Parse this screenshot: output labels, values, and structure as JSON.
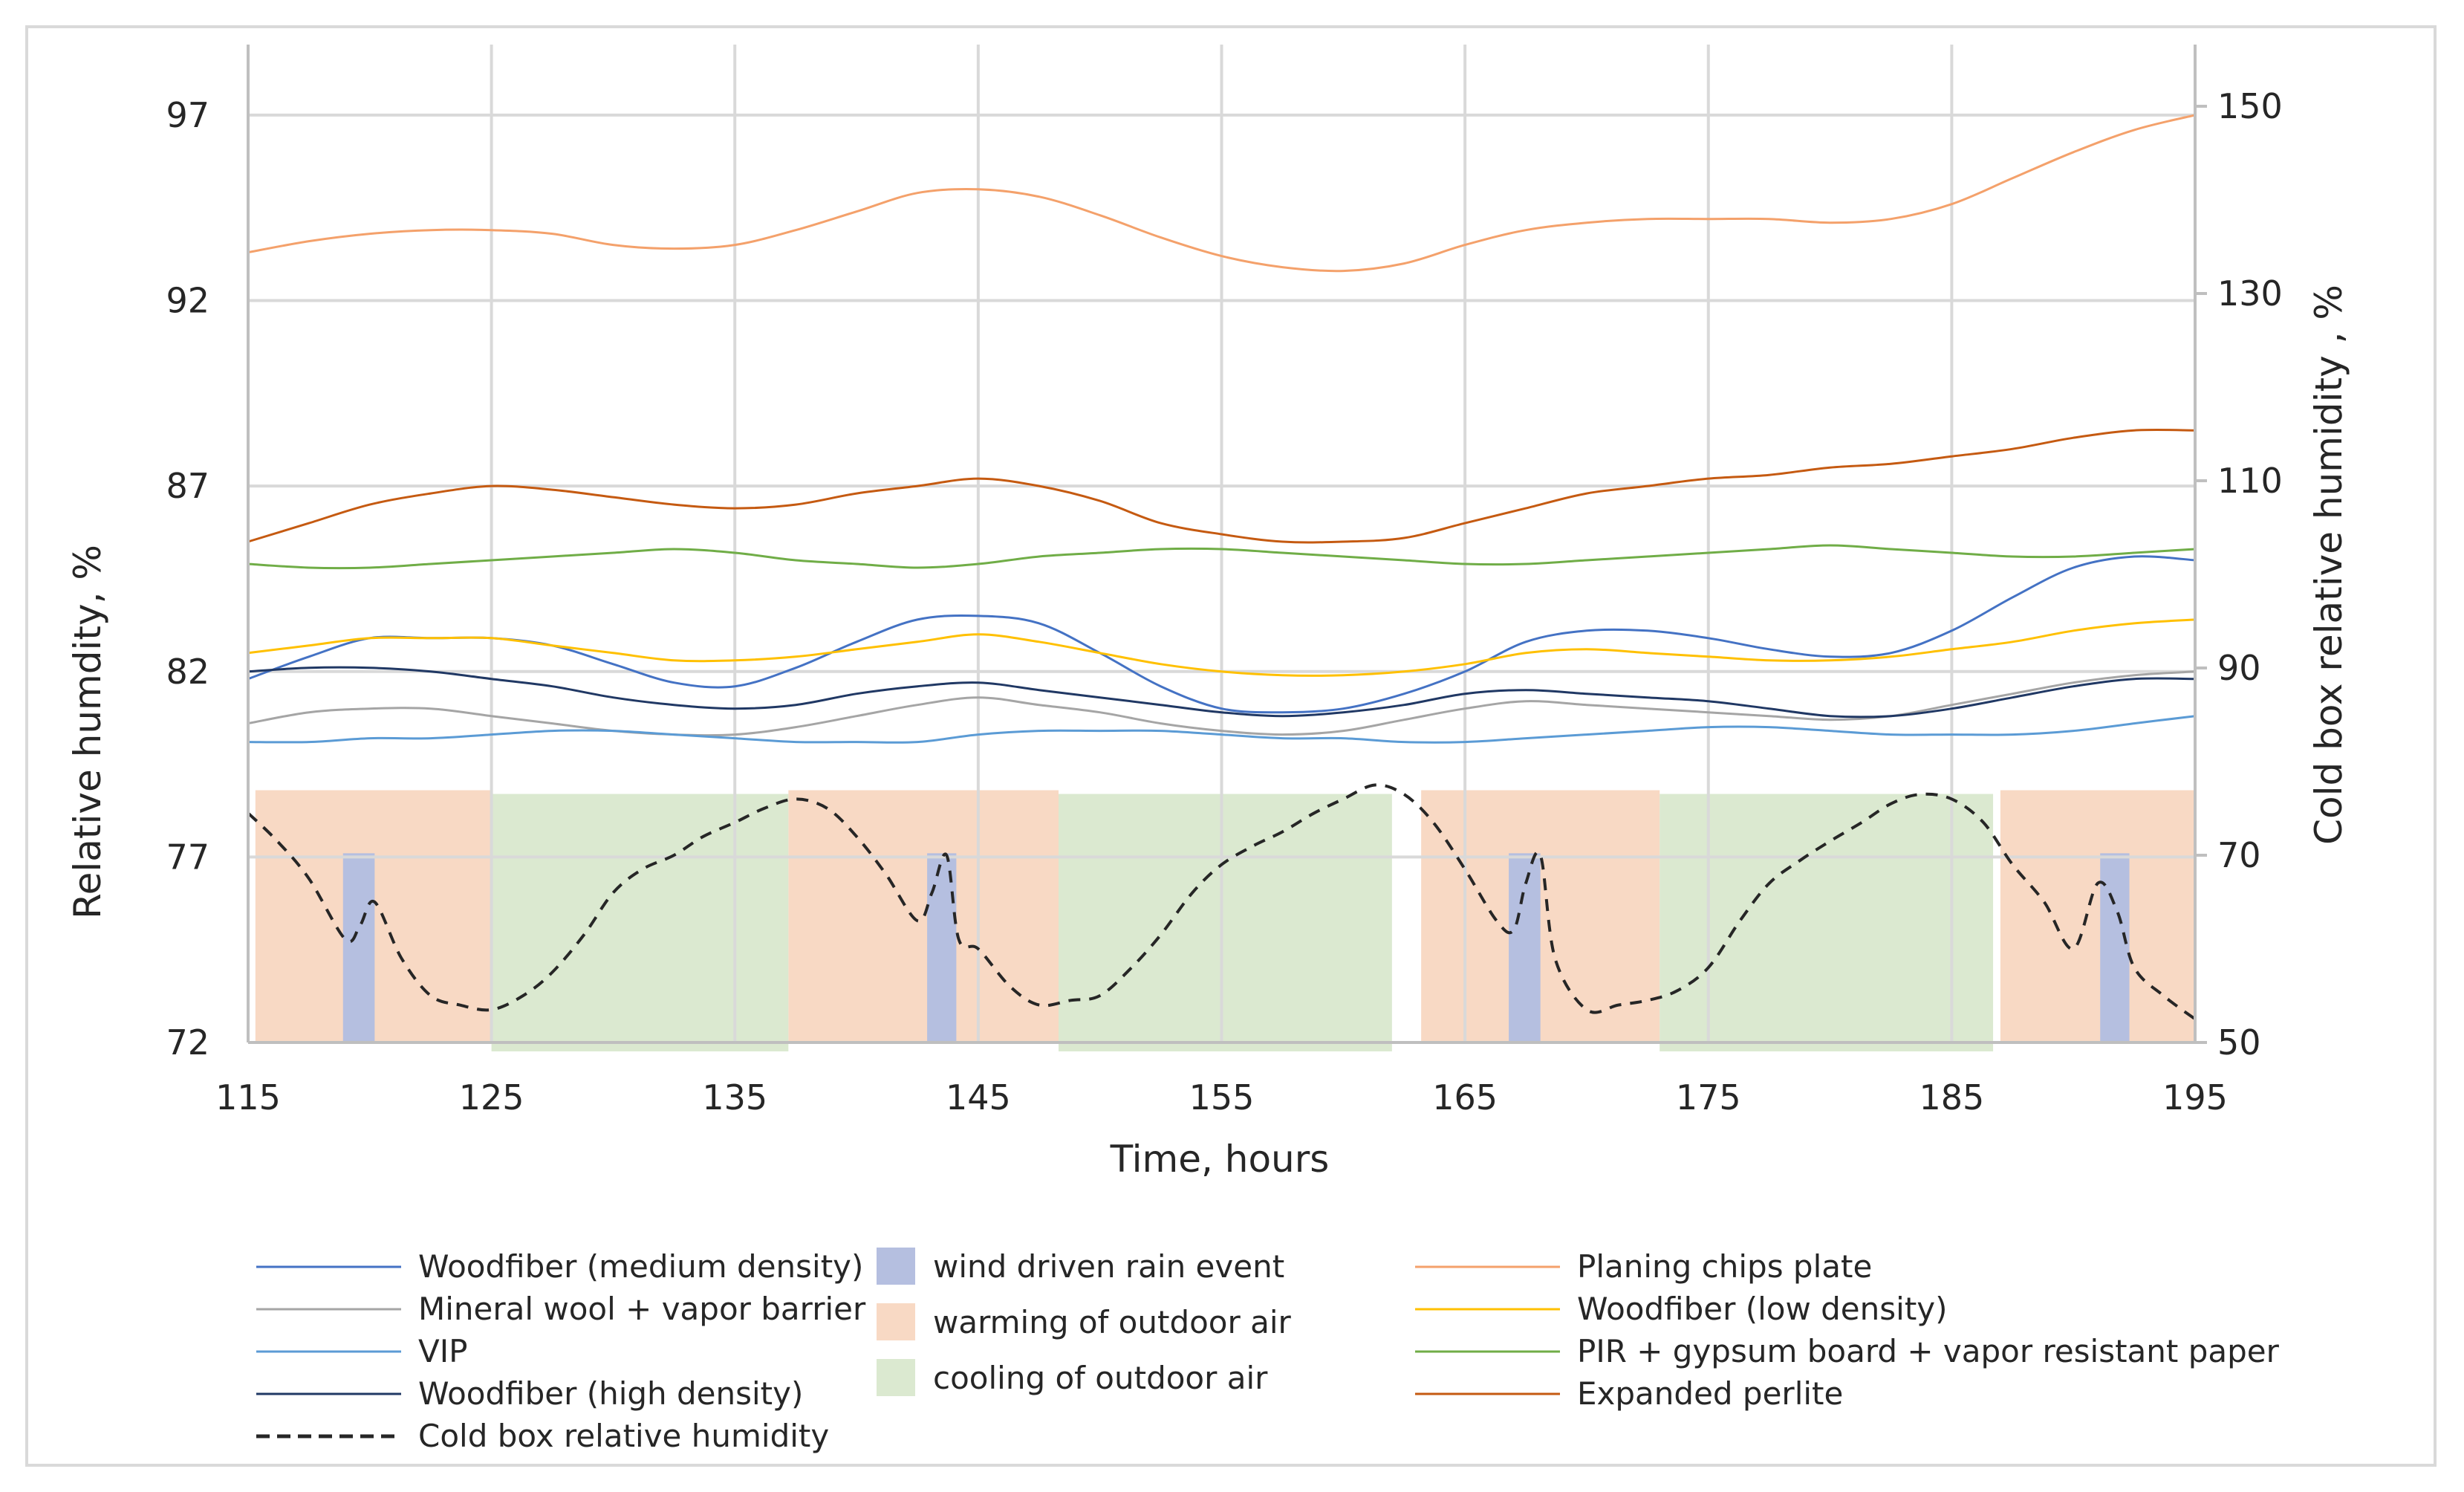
{
  "chart_data": {
    "type": "line",
    "title": "",
    "xlabel": "Time, hours",
    "ylabel": "Relative humdity, %",
    "y2label": "Cold box relative humidity , %",
    "xlim": [
      115,
      195
    ],
    "ylim": [
      72,
      98.5
    ],
    "y2lim": [
      50,
      155
    ],
    "xticks": [
      115,
      125,
      135,
      145,
      155,
      165,
      175,
      185,
      195
    ],
    "yticks": [
      72,
      77,
      82,
      87,
      92,
      97
    ],
    "y2ticks": [
      50,
      70,
      90,
      110,
      130,
      150
    ],
    "grid": true,
    "legend_position": "bottom",
    "shaded_regions": [
      {
        "name": "warming of outdoor air",
        "color": "#f8d9c4",
        "ranges": [
          [
            115.3,
            125
          ],
          [
            137.2,
            148.3
          ],
          [
            163.2,
            173
          ],
          [
            187,
            195
          ]
        ]
      },
      {
        "name": "cooling of outdoor air",
        "color": "#dbe9d0",
        "ranges": [
          [
            125,
            137.2
          ],
          [
            148.3,
            162
          ],
          [
            173,
            186.7
          ]
        ]
      },
      {
        "name": "wind driven rain event",
        "color": "#b5bfe0",
        "ranges": [
          [
            118.9,
            120.2
          ],
          [
            142.9,
            144.1
          ],
          [
            166.8,
            168.1
          ],
          [
            191.1,
            192.3
          ]
        ]
      }
    ],
    "x": [
      115,
      117.5,
      120,
      122.5,
      125,
      127.5,
      130,
      132.5,
      135,
      137.5,
      140,
      142.5,
      145,
      147.5,
      150,
      152.5,
      155,
      157.5,
      160,
      162.5,
      165,
      167.5,
      170,
      172.5,
      175,
      177.5,
      180,
      182.5,
      185,
      187.5,
      190,
      192.5,
      195
    ],
    "series": [
      {
        "name": "Woodfiber (medium density)",
        "axis": "left",
        "color": "#4472c4",
        "width": 3,
        "dash": "",
        "values": [
          81.8,
          82.4,
          82.9,
          82.9,
          82.9,
          82.7,
          82.2,
          81.7,
          81.6,
          82.1,
          82.8,
          83.4,
          83.5,
          83.3,
          82.5,
          81.6,
          81.0,
          80.9,
          81.0,
          81.4,
          82.0,
          82.8,
          83.1,
          83.1,
          82.9,
          82.6,
          82.4,
          82.5,
          83.1,
          84.0,
          84.8,
          85.1,
          85.0
        ]
      },
      {
        "name": "Mineral wool + vapor barrier",
        "axis": "left",
        "color": "#a5a5a5",
        "width": 3,
        "dash": "",
        "values": [
          80.6,
          80.9,
          81.0,
          81.0,
          80.8,
          80.6,
          80.4,
          80.3,
          80.3,
          80.5,
          80.8,
          81.1,
          81.3,
          81.1,
          80.9,
          80.6,
          80.4,
          80.3,
          80.4,
          80.7,
          81.0,
          81.2,
          81.1,
          81.0,
          80.9,
          80.8,
          80.7,
          80.8,
          81.1,
          81.4,
          81.7,
          81.9,
          82.0
        ]
      },
      {
        "name": "VIP",
        "axis": "left",
        "color": "#5b9bd5",
        "width": 3,
        "dash": "",
        "values": [
          80.1,
          80.1,
          80.2,
          80.2,
          80.3,
          80.4,
          80.4,
          80.3,
          80.2,
          80.1,
          80.1,
          80.1,
          80.3,
          80.4,
          80.4,
          80.4,
          80.3,
          80.2,
          80.2,
          80.1,
          80.1,
          80.2,
          80.3,
          80.4,
          80.5,
          80.5,
          80.4,
          80.3,
          80.3,
          80.3,
          80.4,
          80.6,
          80.8
        ]
      },
      {
        "name": "Woodfiber (high density)",
        "axis": "left",
        "color": "#203864",
        "width": 3,
        "dash": "",
        "values": [
          82.0,
          82.1,
          82.1,
          82.0,
          81.8,
          81.6,
          81.3,
          81.1,
          81.0,
          81.1,
          81.4,
          81.6,
          81.7,
          81.5,
          81.3,
          81.1,
          80.9,
          80.8,
          80.9,
          81.1,
          81.4,
          81.5,
          81.4,
          81.3,
          81.2,
          81.0,
          80.8,
          80.8,
          81.0,
          81.3,
          81.6,
          81.8,
          81.8
        ]
      },
      {
        "name": "Planing chips plate",
        "axis": "left",
        "color": "#f4a16b",
        "width": 3,
        "dash": "",
        "values": [
          93.3,
          93.6,
          93.8,
          93.9,
          93.9,
          93.8,
          93.5,
          93.4,
          93.5,
          93.9,
          94.4,
          94.9,
          95.0,
          94.8,
          94.3,
          93.7,
          93.2,
          92.9,
          92.8,
          93.0,
          93.5,
          93.9,
          94.1,
          94.2,
          94.2,
          94.2,
          94.1,
          94.2,
          94.6,
          95.3,
          96.0,
          96.6,
          97.0
        ]
      },
      {
        "name": "Woodfiber (low density)",
        "axis": "left",
        "color": "#ffc000",
        "width": 3,
        "dash": "",
        "values": [
          82.5,
          82.7,
          82.9,
          82.9,
          82.9,
          82.7,
          82.5,
          82.3,
          82.3,
          82.4,
          82.6,
          82.8,
          83.0,
          82.8,
          82.5,
          82.2,
          82.0,
          81.9,
          81.9,
          82.0,
          82.2,
          82.5,
          82.6,
          82.5,
          82.4,
          82.3,
          82.3,
          82.4,
          82.6,
          82.8,
          83.1,
          83.3,
          83.4
        ]
      },
      {
        "name": "PIR + gypsum board + vapor resistant paper",
        "axis": "left",
        "color": "#70ad47",
        "width": 3,
        "dash": "",
        "values": [
          84.9,
          84.8,
          84.8,
          84.9,
          85.0,
          85.1,
          85.2,
          85.3,
          85.2,
          85.0,
          84.9,
          84.8,
          84.9,
          85.1,
          85.2,
          85.3,
          85.3,
          85.2,
          85.1,
          85.0,
          84.9,
          84.9,
          85.0,
          85.1,
          85.2,
          85.3,
          85.4,
          85.3,
          85.2,
          85.1,
          85.1,
          85.2,
          85.3
        ]
      },
      {
        "name": "Expanded perlite",
        "axis": "left",
        "color": "#c55a11",
        "width": 3,
        "dash": "",
        "values": [
          85.5,
          86.0,
          86.5,
          86.8,
          87.0,
          86.9,
          86.7,
          86.5,
          86.4,
          86.5,
          86.8,
          87.0,
          87.2,
          87.0,
          86.6,
          86.0,
          85.7,
          85.5,
          85.5,
          85.6,
          86.0,
          86.4,
          86.8,
          87.0,
          87.2,
          87.3,
          87.5,
          87.6,
          87.8,
          88.0,
          88.3,
          88.5,
          88.5
        ]
      },
      {
        "name": "Cold box relative humidity",
        "axis": "right",
        "color": "#262626",
        "width": 4,
        "dash": "16,12",
        "x": [
          115,
          116.2,
          117.5,
          119,
          119.6,
          120.2,
          121.3,
          122.5,
          123.7,
          125,
          126.3,
          127.5,
          128.8,
          130,
          131.2,
          132.5,
          133.7,
          135,
          136.2,
          137.5,
          138.8,
          140,
          141.2,
          142.5,
          143.1,
          143.7,
          144.2,
          145,
          146.3,
          147.5,
          148.8,
          150,
          151.3,
          152.5,
          153.8,
          155,
          156.3,
          157.5,
          158.8,
          160,
          161.3,
          162.5,
          163.7,
          165,
          166.3,
          167,
          167.5,
          168.1,
          168.7,
          170,
          171.3,
          172.5,
          173.7,
          175,
          176.3,
          177.5,
          178.8,
          180,
          181.3,
          182.5,
          183.7,
          185,
          186.3,
          187.5,
          188.8,
          190,
          191,
          191.8,
          192.5,
          193.7,
          195
        ],
        "values": [
          74.5,
          71.5,
          67.5,
          61,
          62.5,
          65,
          59,
          55,
          54,
          53.5,
          55,
          57.5,
          61.5,
          66,
          68.5,
          70,
          72,
          73.5,
          75,
          76,
          75,
          72,
          68,
          63,
          66,
          70,
          61,
          60,
          56,
          54,
          54.5,
          55,
          58,
          61.5,
          66,
          69,
          71,
          72.5,
          74.5,
          76,
          77.5,
          76.5,
          73.5,
          68.5,
          63,
          62,
          67,
          70,
          59,
          53.5,
          54,
          54.5,
          55.5,
          58,
          63,
          67,
          69.5,
          71.5,
          73.5,
          75.5,
          76.5,
          76,
          73.5,
          69,
          65,
          60,
          67,
          64,
          58,
          55,
          52.5
        ]
      }
    ],
    "legend": [
      {
        "label": "Woodfiber (medium density)",
        "kind": "line",
        "color": "#4472c4"
      },
      {
        "label": "Mineral wool + vapor barrier",
        "kind": "line",
        "color": "#a5a5a5"
      },
      {
        "label": "VIP",
        "kind": "line",
        "color": "#5b9bd5"
      },
      {
        "label": "Woodfiber (high density)",
        "kind": "line",
        "color": "#203864"
      },
      {
        "label": "Cold box relative humidity",
        "kind": "dash",
        "color": "#262626"
      },
      {
        "label": "wind driven rain event",
        "kind": "box",
        "color": "#b5bfe0"
      },
      {
        "label": "warming of outdoor air",
        "kind": "box",
        "color": "#f8d9c4"
      },
      {
        "label": "cooling of outdoor air",
        "kind": "box",
        "color": "#dbe9d0"
      },
      {
        "label": "Planing chips plate",
        "kind": "line",
        "color": "#f4a16b"
      },
      {
        "label": "Woodfiber (low density)",
        "kind": "line",
        "color": "#ffc000"
      },
      {
        "label": "PIR + gypsum board + vapor resistant paper",
        "kind": "line",
        "color": "#70ad47"
      },
      {
        "label": "Expanded perlite",
        "kind": "line",
        "color": "#c55a11"
      }
    ]
  }
}
